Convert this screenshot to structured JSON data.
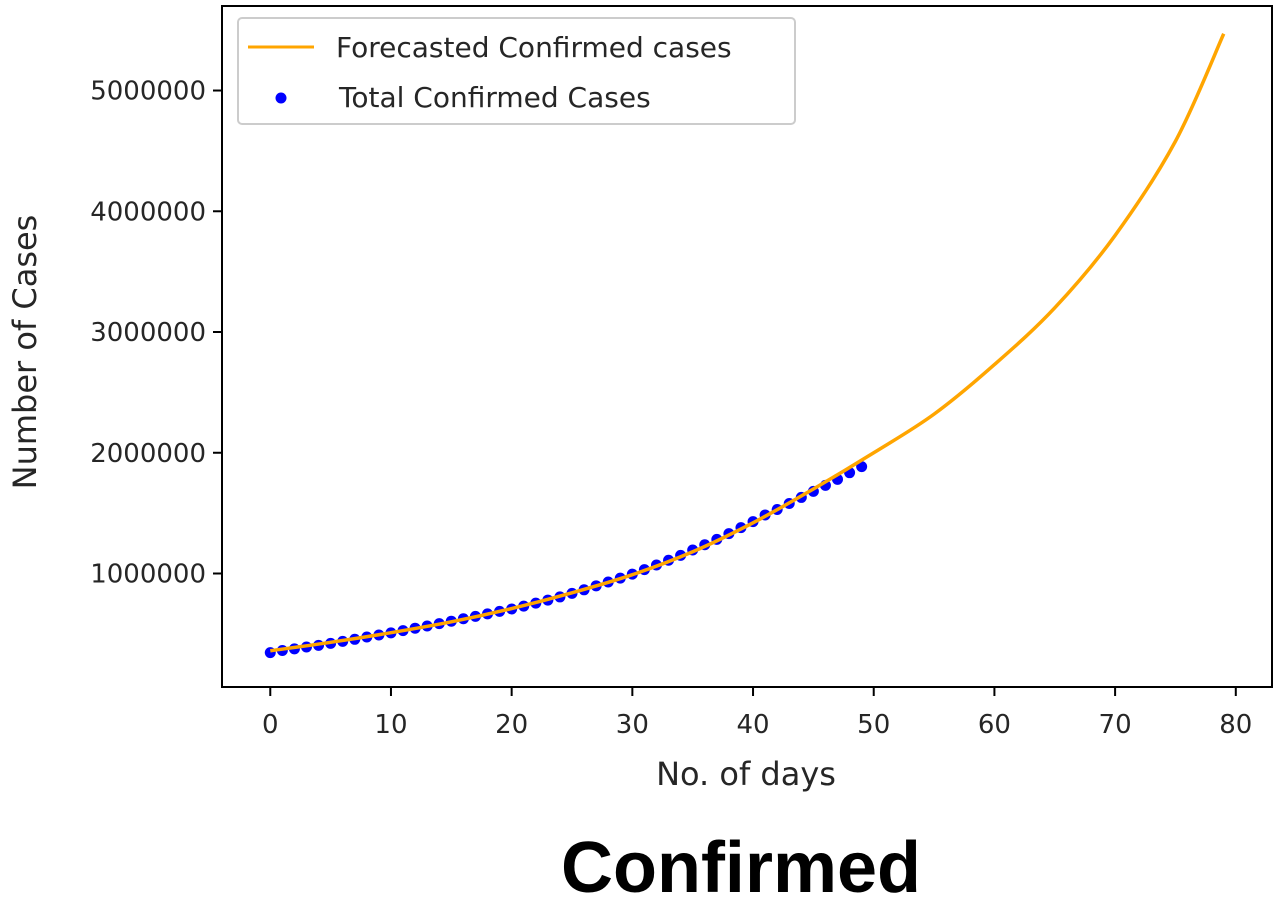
{
  "chart_data": {
    "type": "line",
    "title": "",
    "caption": "Confirmed",
    "xlabel": "No. of days",
    "ylabel": "Number of Cases",
    "xlim": [
      -4,
      83
    ],
    "ylim": [
      60000,
      5700000
    ],
    "xticks": [
      0,
      10,
      20,
      30,
      40,
      50,
      60,
      70,
      80
    ],
    "yticks": [
      1000000,
      2000000,
      3000000,
      4000000,
      5000000
    ],
    "legend_position": "top-left",
    "grid": false,
    "series": [
      {
        "name": "Forecasted Confirmed cases",
        "type": "line",
        "color": "#FFA500",
        "x": [
          0,
          5,
          10,
          15,
          20,
          25,
          30,
          35,
          40,
          45,
          50,
          55,
          60,
          65,
          70,
          75,
          79
        ],
        "y": [
          360000,
          430000,
          510000,
          600000,
          710000,
          840000,
          990000,
          1180000,
          1420000,
          1700000,
          2000000,
          2320000,
          2730000,
          3200000,
          3800000,
          4580000,
          5470000
        ]
      },
      {
        "name": "Total Confirmed Cases",
        "type": "scatter",
        "color": "#0000FF",
        "x": [
          0,
          1,
          2,
          3,
          4,
          5,
          6,
          7,
          8,
          9,
          10,
          11,
          12,
          13,
          14,
          15,
          16,
          17,
          18,
          19,
          20,
          21,
          22,
          23,
          24,
          25,
          26,
          27,
          28,
          29,
          30,
          31,
          32,
          33,
          34,
          35,
          36,
          37,
          38,
          39,
          40,
          41,
          42,
          43,
          44,
          45,
          46,
          47,
          48,
          49
        ],
        "y": [
          345000,
          362000,
          376000,
          391000,
          405000,
          421000,
          438000,
          455000,
          474000,
          491000,
          508000,
          527000,
          547000,
          565000,
          585000,
          605000,
          625000,
          645000,
          666000,
          686000,
          706000,
          730000,
          755000,
          780000,
          806000,
          835000,
          865000,
          898000,
          930000,
          962000,
          995000,
          1032000,
          1070000,
          1110000,
          1150000,
          1195000,
          1238000,
          1283000,
          1330000,
          1380000,
          1430000,
          1485000,
          1530000,
          1580000,
          1630000,
          1680000,
          1730000,
          1780000,
          1835000,
          1885000
        ]
      }
    ]
  }
}
